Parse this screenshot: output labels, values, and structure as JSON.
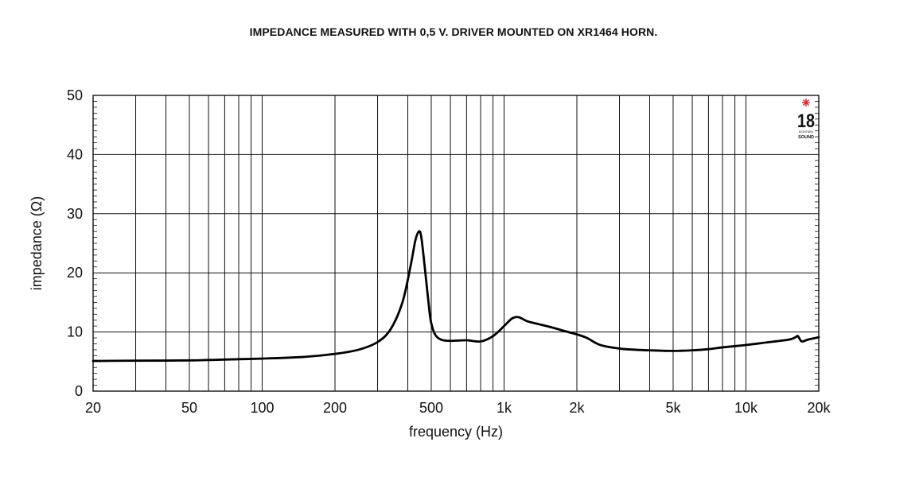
{
  "chart_data": {
    "type": "line",
    "title": "IMPEDANCE MEASURED WITH 0,5 V. DRIVER MOUNTED ON XR1464 HORN.",
    "xlabel": "frequency (Hz)",
    "ylabel": "impedance (Ω)",
    "xscale": "log",
    "xlim": [
      20,
      20000
    ],
    "ylim": [
      0,
      50
    ],
    "grid": true,
    "xticks": [
      20,
      50,
      100,
      200,
      500,
      1000,
      2000,
      5000,
      10000,
      20000
    ],
    "xtick_labels": [
      "20",
      "50",
      "100",
      "200",
      "500",
      "1k",
      "2k",
      "5k",
      "10k",
      "20k"
    ],
    "yticks": [
      0,
      10,
      20,
      30,
      40,
      50
    ],
    "ytick_labels": [
      "0",
      "10",
      "20",
      "30",
      "40",
      "50"
    ],
    "series": [
      {
        "x": [
          20,
          30,
          50,
          80,
          100,
          150,
          200,
          250,
          300,
          340,
          380,
          410,
          430,
          445,
          455,
          470,
          490,
          500,
          520,
          550,
          600,
          700,
          800,
          900,
          1000,
          1080,
          1150,
          1250,
          1400,
          1600,
          1800,
          2000,
          2200,
          2500,
          3000,
          3500,
          4000,
          5000,
          6000,
          7000,
          8000,
          10000,
          12000,
          15000,
          16000,
          16400,
          17000,
          18000,
          20000
        ],
        "y": [
          5.1,
          5.15,
          5.2,
          5.4,
          5.5,
          5.8,
          6.3,
          7.0,
          8.3,
          10.5,
          15.0,
          21.0,
          25.5,
          27.0,
          26.0,
          21.0,
          14.0,
          11.5,
          9.5,
          8.7,
          8.5,
          8.6,
          8.4,
          9.3,
          11.0,
          12.3,
          12.5,
          11.8,
          11.3,
          10.7,
          10.1,
          9.6,
          9.0,
          7.8,
          7.2,
          7.0,
          6.9,
          6.8,
          6.9,
          7.1,
          7.4,
          7.8,
          8.2,
          8.7,
          9.1,
          9.3,
          8.4,
          8.7,
          9.1
        ]
      }
    ]
  },
  "logo": {
    "number": "18",
    "tagline": "EIGHTEEN",
    "word": "SOUND",
    "accent_color": "#d9232a"
  }
}
